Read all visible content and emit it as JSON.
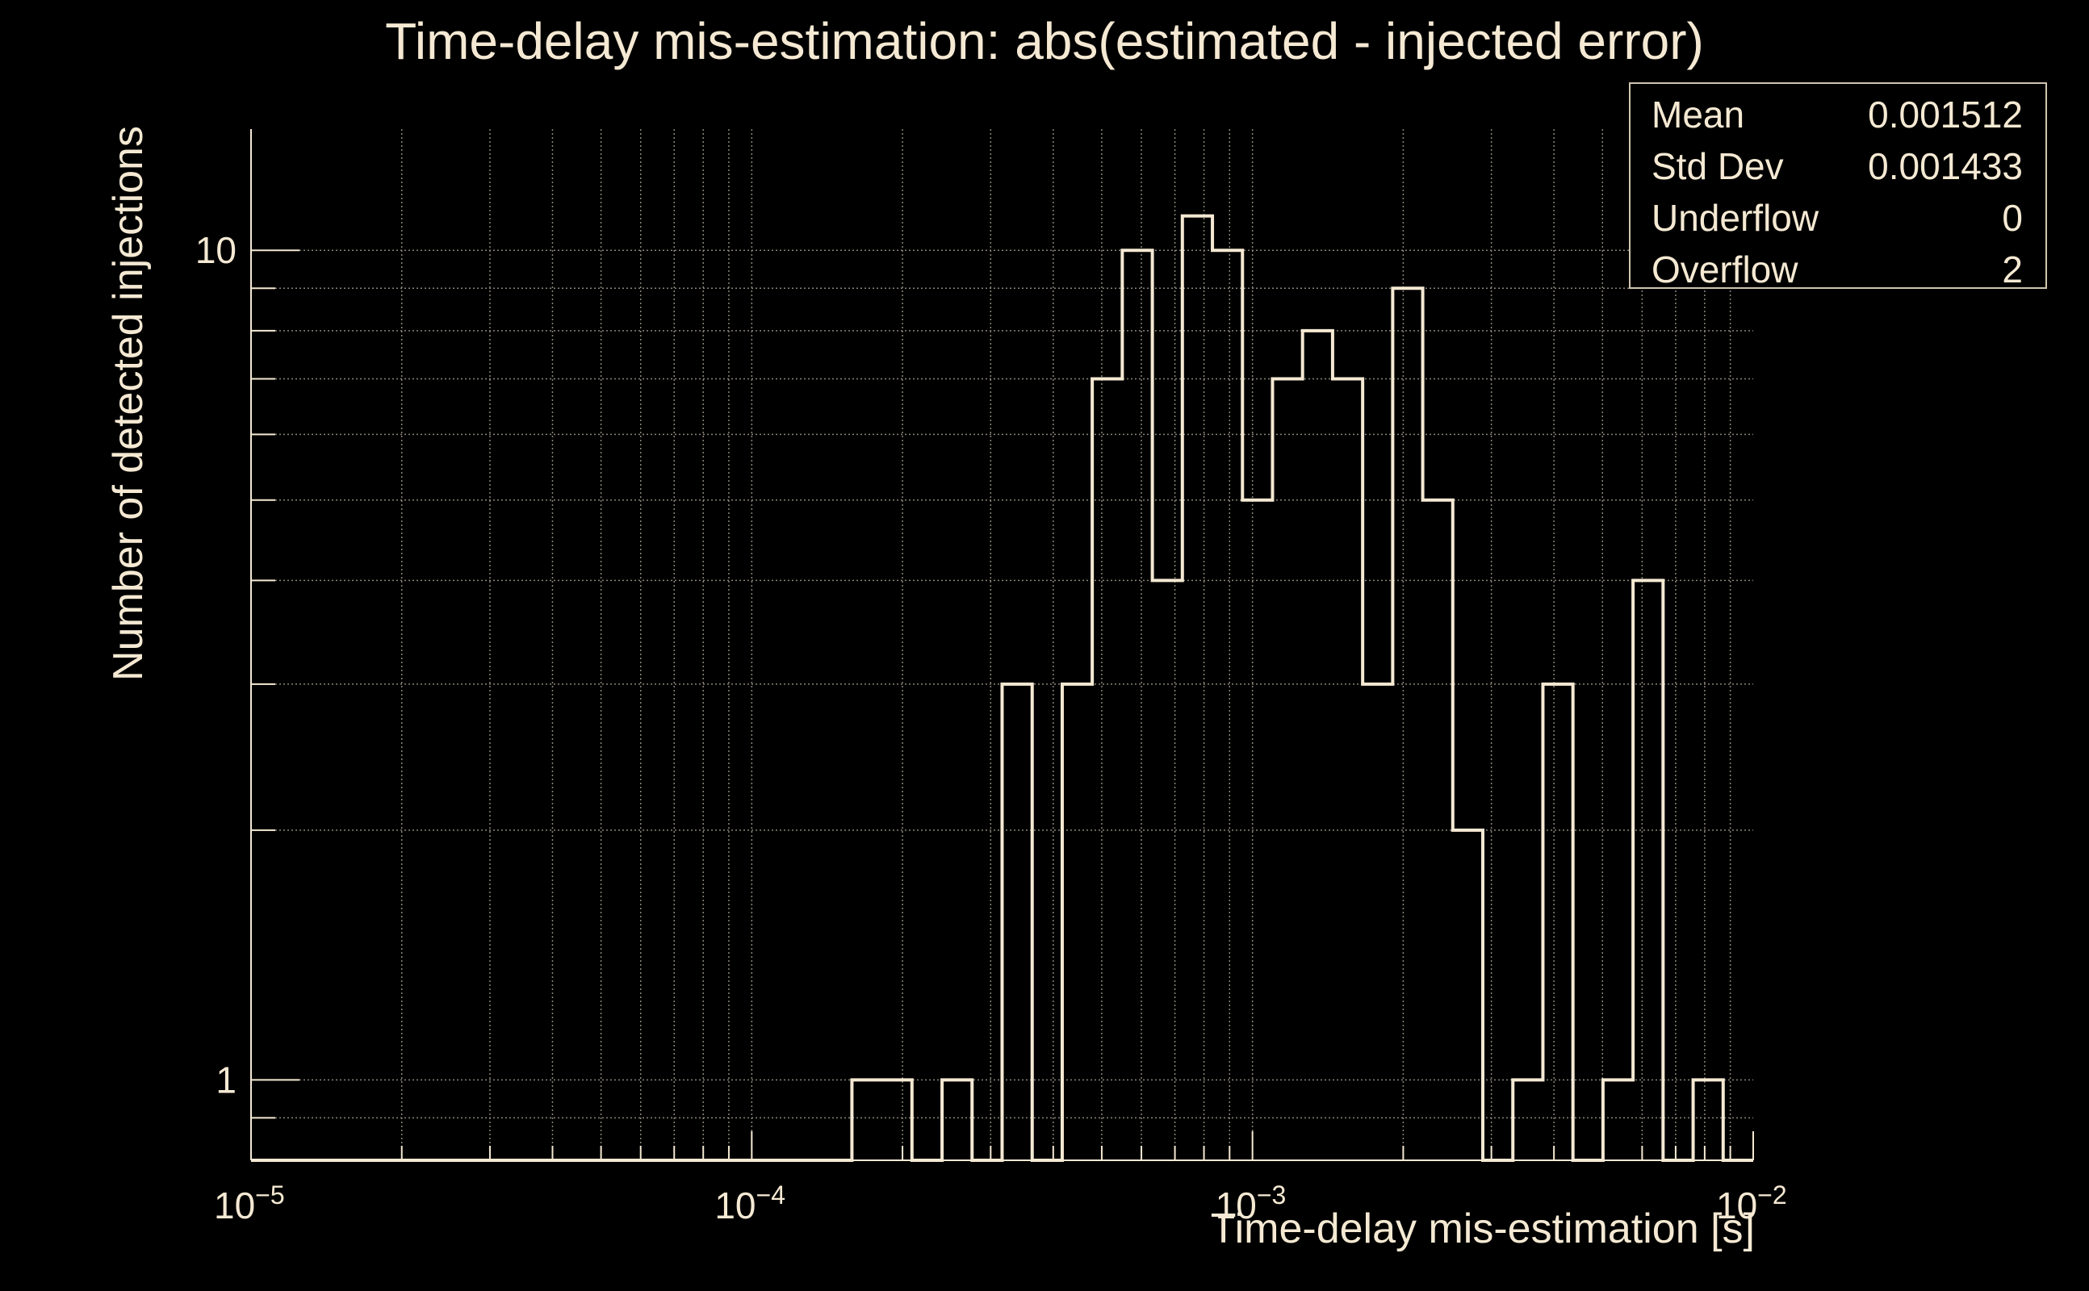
{
  "colors": {
    "background": "#000000",
    "foreground": "#f5e9d3",
    "grid": "#8a8578",
    "histogram": "#f5e9d3"
  },
  "stats": [
    {
      "key": "Mean",
      "value": "0.001512"
    },
    {
      "key": "Std Dev",
      "value": "0.001433"
    },
    {
      "key": "Underflow",
      "value": "0"
    },
    {
      "key": "Overflow",
      "value": "2"
    }
  ],
  "chart_data": {
    "type": "histogram",
    "title": "Time-delay mis-estimation: abs(estimated - injected error)",
    "xlabel": "Time-delay mis-estimation [s]",
    "ylabel": "Number of detected injections",
    "x_scale": "log",
    "y_scale": "log",
    "xlim": [
      1e-05,
      0.01
    ],
    "ylim": [
      0.8,
      14
    ],
    "x_ticks": [
      {
        "base": "10",
        "exp": "−5",
        "value": 1e-05
      },
      {
        "base": "10",
        "exp": "−4",
        "value": 0.0001
      },
      {
        "base": "10",
        "exp": "−3",
        "value": 0.001
      },
      {
        "base": "10",
        "exp": "−2",
        "value": 0.01
      }
    ],
    "y_ticks": [
      {
        "label": "1",
        "value": 1
      },
      {
        "label": "10",
        "value": 10
      }
    ],
    "grid": true,
    "bins": [
      {
        "x0": 1e-05,
        "x1": 0.0001585,
        "count": 0
      },
      {
        "x0": 0.0001585,
        "x1": 0.0002089,
        "count": 1
      },
      {
        "x0": 0.0002089,
        "x1": 0.0002399,
        "count": 0
      },
      {
        "x0": 0.0002399,
        "x1": 0.0002754,
        "count": 1
      },
      {
        "x0": 0.0002754,
        "x1": 0.0003162,
        "count": 0
      },
      {
        "x0": 0.0003162,
        "x1": 0.0003631,
        "count": 3
      },
      {
        "x0": 0.0003631,
        "x1": 0.0004169,
        "count": 0
      },
      {
        "x0": 0.0004169,
        "x1": 0.0004786,
        "count": 3
      },
      {
        "x0": 0.0004786,
        "x1": 0.0005495,
        "count": 7
      },
      {
        "x0": 0.0005495,
        "x1": 0.000631,
        "count": 10
      },
      {
        "x0": 0.000631,
        "x1": 0.0007244,
        "count": 4
      },
      {
        "x0": 0.0007244,
        "x1": 0.0008318,
        "count": 11
      },
      {
        "x0": 0.0008318,
        "x1": 0.000955,
        "count": 10
      },
      {
        "x0": 0.000955,
        "x1": 0.0010965,
        "count": 5
      },
      {
        "x0": 0.0010965,
        "x1": 0.0012589,
        "count": 7
      },
      {
        "x0": 0.0012589,
        "x1": 0.0014454,
        "count": 8
      },
      {
        "x0": 0.0014454,
        "x1": 0.0016596,
        "count": 7
      },
      {
        "x0": 0.0016596,
        "x1": 0.0019055,
        "count": 3
      },
      {
        "x0": 0.0019055,
        "x1": 0.0021878,
        "count": 9
      },
      {
        "x0": 0.0021878,
        "x1": 0.0025119,
        "count": 5
      },
      {
        "x0": 0.0025119,
        "x1": 0.002884,
        "count": 2
      },
      {
        "x0": 0.002884,
        "x1": 0.0033113,
        "count": 0
      },
      {
        "x0": 0.0033113,
        "x1": 0.0038019,
        "count": 1
      },
      {
        "x0": 0.0038019,
        "x1": 0.0043652,
        "count": 3
      },
      {
        "x0": 0.0043652,
        "x1": 0.0050119,
        "count": 0
      },
      {
        "x0": 0.0050119,
        "x1": 0.0057544,
        "count": 1
      },
      {
        "x0": 0.0057544,
        "x1": 0.0066069,
        "count": 4
      },
      {
        "x0": 0.0066069,
        "x1": 0.0075858,
        "count": 0
      },
      {
        "x0": 0.0075858,
        "x1": 0.0087096,
        "count": 1
      },
      {
        "x0": 0.0087096,
        "x1": 0.01,
        "count": 0
      }
    ]
  }
}
